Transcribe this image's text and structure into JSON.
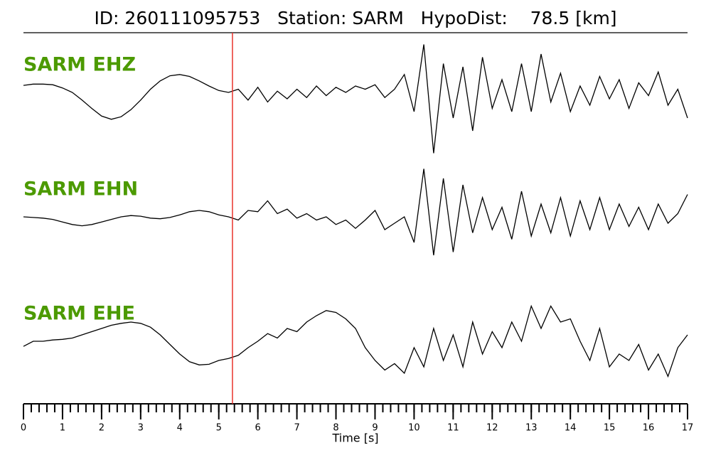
{
  "chart_data": {
    "type": "line",
    "title": "ID: 260111095753   Station: SARM   HypoDist:    78.5 [km]",
    "xlabel": "Time [s]",
    "xlim": [
      0,
      17
    ],
    "xticks": [
      0,
      1,
      2,
      3,
      4,
      5,
      6,
      7,
      8,
      9,
      10,
      11,
      12,
      13,
      14,
      15,
      16,
      17
    ],
    "minor_xtick_step": 0.2,
    "ylim": [
      -1,
      1
    ],
    "pick_x": 5.35,
    "pick_color": "#e8322b",
    "label_color": "#4c9a00",
    "x": [
      0,
      0.25,
      0.5,
      0.75,
      1,
      1.25,
      1.5,
      1.75,
      2,
      2.25,
      2.5,
      2.75,
      3,
      3.25,
      3.5,
      3.75,
      4,
      4.25,
      4.5,
      4.75,
      5,
      5.25,
      5.5,
      5.75,
      6,
      6.25,
      6.5,
      6.75,
      7,
      7.25,
      7.5,
      7.75,
      8,
      8.25,
      8.5,
      8.75,
      9,
      9.25,
      9.5,
      9.75,
      10,
      10.25,
      10.5,
      10.75,
      11,
      11.25,
      11.5,
      11.75,
      12,
      12.25,
      12.5,
      12.75,
      13,
      13.25,
      13.5,
      13.75,
      14,
      14.25,
      14.5,
      14.75,
      15,
      15.25,
      15.5,
      15.75,
      16,
      16.25,
      16.5,
      16.75,
      17
    ],
    "series": [
      {
        "name": "SARM EHZ",
        "color": "#000000",
        "values": [
          0.11,
          0.13,
          0.13,
          0.12,
          0.07,
          0.0,
          -0.12,
          -0.25,
          -0.37,
          -0.42,
          -0.38,
          -0.27,
          -0.12,
          0.05,
          0.18,
          0.26,
          0.28,
          0.25,
          0.18,
          0.1,
          0.03,
          0.0,
          0.05,
          -0.12,
          0.08,
          -0.15,
          0.02,
          -0.1,
          0.05,
          -0.08,
          0.1,
          -0.05,
          0.08,
          0.0,
          0.1,
          0.05,
          0.12,
          -0.08,
          0.05,
          0.28,
          -0.3,
          0.75,
          -0.95,
          0.45,
          -0.4,
          0.4,
          -0.6,
          0.55,
          -0.25,
          0.2,
          -0.3,
          0.45,
          -0.3,
          0.6,
          -0.15,
          0.3,
          -0.3,
          0.1,
          -0.2,
          0.25,
          -0.1,
          0.2,
          -0.25,
          0.15,
          -0.05,
          0.32,
          -0.2,
          0.05,
          -0.4
        ]
      },
      {
        "name": "SARM EHN",
        "color": "#000000",
        "values": [
          0.0,
          -0.01,
          -0.02,
          -0.04,
          -0.08,
          -0.12,
          -0.14,
          -0.12,
          -0.08,
          -0.04,
          0.0,
          0.02,
          0.01,
          -0.02,
          -0.03,
          -0.01,
          0.03,
          0.08,
          0.1,
          0.08,
          0.03,
          0.0,
          -0.05,
          0.1,
          0.08,
          0.25,
          0.05,
          0.12,
          -0.02,
          0.05,
          -0.05,
          0.0,
          -0.12,
          -0.05,
          -0.18,
          -0.05,
          0.1,
          -0.2,
          -0.1,
          0.0,
          -0.4,
          0.75,
          -0.6,
          0.6,
          -0.55,
          0.5,
          -0.25,
          0.3,
          -0.2,
          0.15,
          -0.35,
          0.4,
          -0.3,
          0.2,
          -0.25,
          0.3,
          -0.3,
          0.25,
          -0.2,
          0.3,
          -0.2,
          0.2,
          -0.15,
          0.15,
          -0.2,
          0.2,
          -0.1,
          0.05,
          0.35
        ]
      },
      {
        "name": "SARM EHE",
        "color": "#000000",
        "values": [
          -0.08,
          0.0,
          0.0,
          0.02,
          0.03,
          0.05,
          0.1,
          0.15,
          0.2,
          0.25,
          0.28,
          0.3,
          0.28,
          0.22,
          0.1,
          -0.05,
          -0.2,
          -0.32,
          -0.37,
          -0.36,
          -0.3,
          -0.27,
          -0.22,
          -0.1,
          0.0,
          0.12,
          0.05,
          0.2,
          0.15,
          0.3,
          0.4,
          0.48,
          0.45,
          0.35,
          0.2,
          -0.1,
          -0.3,
          -0.45,
          -0.35,
          -0.5,
          -0.1,
          -0.4,
          0.2,
          -0.3,
          0.1,
          -0.4,
          0.3,
          -0.2,
          0.15,
          -0.1,
          0.3,
          0.0,
          0.55,
          0.2,
          0.55,
          0.3,
          0.35,
          0.0,
          -0.3,
          0.2,
          -0.4,
          -0.2,
          -0.3,
          -0.05,
          -0.45,
          -0.2,
          -0.55,
          -0.1,
          0.1
        ]
      }
    ]
  }
}
